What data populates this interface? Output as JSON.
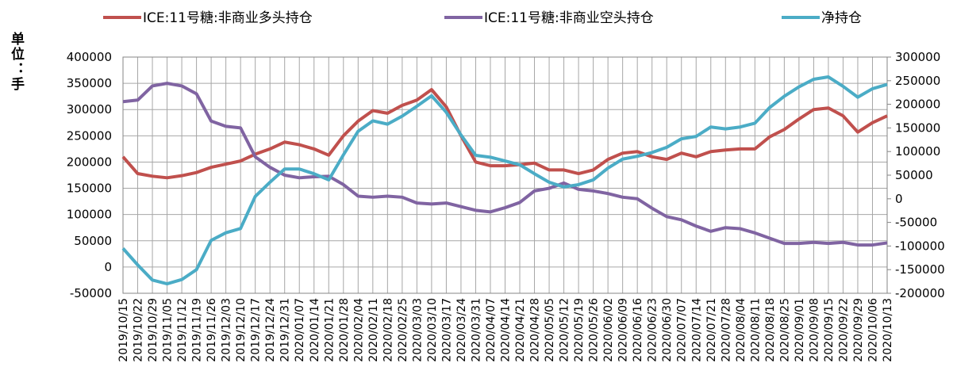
{
  "chart_data": {
    "type": "line",
    "y_label": "单位：手",
    "legend": "top",
    "grid": true,
    "categories": [
      "2019/10/15",
      "2019/10/22",
      "2019/10/29",
      "2019/11/05",
      "2019/11/12",
      "2019/11/19",
      "2019/11/26",
      "2019/12/03",
      "2019/12/10",
      "2019/12/17",
      "2019/12/24",
      "2019/12/31",
      "2020/01/07",
      "2020/01/14",
      "2020/01/21",
      "2020/01/28",
      "2020/02/04",
      "2020/02/11",
      "2020/02/18",
      "2020/02/25",
      "2020/03/03",
      "2020/03/10",
      "2020/03/17",
      "2020/03/24",
      "2020/03/31",
      "2020/04/07",
      "2020/04/14",
      "2020/04/21",
      "2020/04/28",
      "2020/05/05",
      "2020/05/12",
      "2020/05/19",
      "2020/05/26",
      "2020/06/02",
      "2020/06/09",
      "2020/06/16",
      "2020/06/23",
      "2020/06/30",
      "2020/07/07",
      "2020/07/14",
      "2020/07/21",
      "2020/07/28",
      "2020/08/04",
      "2020/08/11",
      "2020/08/18",
      "2020/08/25",
      "2020/09/01",
      "2020/09/08",
      "2020/09/15",
      "2020/09/22",
      "2020/09/29",
      "2020/10/06",
      "2020/10/13"
    ],
    "series": [
      {
        "name": "ICE:11号糖:非商业多头持仓",
        "color": "#c0504d",
        "axis": "y",
        "values": [
          210000,
          178000,
          173000,
          170000,
          174000,
          180000,
          190000,
          196000,
          202000,
          215000,
          225000,
          238000,
          233000,
          225000,
          213000,
          250000,
          278000,
          298000,
          293000,
          308000,
          318000,
          338000,
          305000,
          250000,
          200000,
          193000,
          193000,
          195000,
          198000,
          185000,
          185000,
          178000,
          185000,
          205000,
          217000,
          220000,
          210000,
          205000,
          217000,
          210000,
          220000,
          223000,
          225000,
          225000,
          248000,
          262000,
          282000,
          300000,
          303000,
          288000,
          257000,
          275000,
          288000
        ]
      },
      {
        "name": "ICE:11号糖:非商业空头持仓",
        "color": "#8064a2",
        "axis": "y",
        "values": [
          315000,
          318000,
          345000,
          350000,
          345000,
          330000,
          278000,
          268000,
          265000,
          210000,
          190000,
          175000,
          170000,
          172000,
          173000,
          157000,
          135000,
          133000,
          135000,
          133000,
          122000,
          120000,
          122000,
          115000,
          108000,
          105000,
          113000,
          123000,
          145000,
          150000,
          160000,
          148000,
          145000,
          140000,
          133000,
          130000,
          112000,
          96000,
          90000,
          78000,
          68000,
          75000,
          73000,
          65000,
          55000,
          45000,
          45000,
          47000,
          45000,
          47000,
          42000,
          42000,
          46000
        ]
      },
      {
        "name": "净持仓",
        "color": "#4bacc6",
        "axis": "y2",
        "values": [
          -105000,
          -140000,
          -172000,
          -180000,
          -171000,
          -150000,
          -88000,
          -72000,
          -63000,
          5000,
          35000,
          63000,
          63000,
          53000,
          40000,
          93000,
          143000,
          165000,
          158000,
          175000,
          196000,
          218000,
          183000,
          135000,
          92000,
          88000,
          80000,
          72000,
          53000,
          35000,
          25000,
          30000,
          40000,
          65000,
          84000,
          90000,
          98000,
          109000,
          127000,
          132000,
          152000,
          148000,
          152000,
          160000,
          193000,
          217000,
          237000,
          253000,
          258000,
          238000,
          215000,
          233000,
          242000
        ]
      }
    ],
    "ylim": [
      -50000,
      400000
    ],
    "yticks": [
      -50000,
      0,
      50000,
      100000,
      150000,
      200000,
      250000,
      300000,
      350000,
      400000
    ],
    "y2lim": [
      -200000,
      300000
    ],
    "y2ticks": [
      -200000,
      -150000,
      -100000,
      -50000,
      0,
      50000,
      100000,
      150000,
      200000,
      250000,
      300000
    ]
  }
}
